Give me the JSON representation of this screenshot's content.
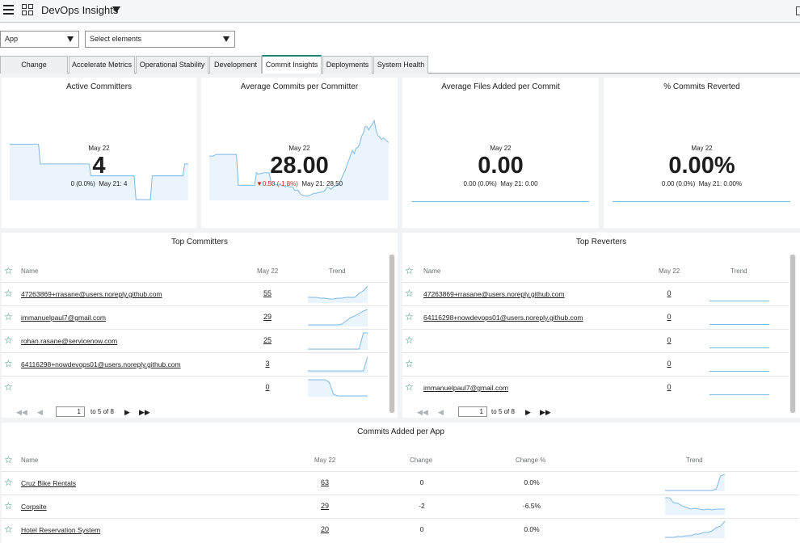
{
  "header": {
    "title": "DevOps Insights"
  },
  "filters": {
    "app_value": "App",
    "elements_placeholder": "Select elements"
  },
  "tabs": [
    "Change Acceleration",
    "Accelerate Metrics",
    "Operational Stability",
    "Development",
    "Commit Insights",
    "Deployments",
    "System Health"
  ],
  "active_tab": "Commit Insights",
  "kpis": [
    {
      "title": "Active Committers",
      "date": "May 22",
      "value": "4",
      "change": "0 (0.0%)",
      "prev": "May 21: 4",
      "negative": false,
      "trend": [
        0.7,
        0.7,
        0.7,
        0.7,
        0.7,
        0.7,
        0.7,
        0.7,
        0.7,
        0.7,
        0.7,
        0.7,
        0.7,
        0.7,
        0.7,
        0.7,
        0.7,
        0.45,
        0.45,
        0.45,
        0.45,
        0.45,
        0.45,
        0.45,
        0.45,
        0.45,
        0.45,
        0.45,
        0.45,
        0.45,
        0.45,
        0.45,
        0.45,
        0.45,
        0.45,
        0.45,
        0.45,
        0.45,
        0.45,
        0.45,
        0.45,
        0.45,
        0.45,
        0.45,
        0.45,
        0.3,
        0.3,
        0.3,
        0.3,
        0.3,
        0.3,
        0.3,
        0.3,
        0.3,
        0.3,
        0.3,
        0.3,
        0.3,
        0.3,
        0.3,
        0.3,
        0.3,
        0.3,
        0.3,
        0.3,
        0.3,
        0.3,
        0.3,
        0.3,
        0.3,
        0.0,
        0.0,
        0.0,
        0.0,
        0.0,
        0.0,
        0.0,
        0.0,
        0.0,
        0.3,
        0.3,
        0.3,
        0.3,
        0.3,
        0.3,
        0.3,
        0.3,
        0.3,
        0.3,
        0.3,
        0.3,
        0.3,
        0.3,
        0.3,
        0.3,
        0.3,
        0.3,
        0.45,
        0.45,
        0.45
      ]
    },
    {
      "title": "Average Commits per Committer",
      "date": "May 22",
      "value": "28.00",
      "change": "▼0.50 (-1.8%)",
      "prev": "May 21: 28.50",
      "negative": true,
      "trend": [
        0.55,
        0.55,
        0.55,
        0.56,
        0.57,
        0.57,
        0.57,
        0.57,
        0.57,
        0.57,
        0.57,
        0.57,
        0.57,
        0.57,
        0.57,
        0.57,
        0.18,
        0.18,
        0.18,
        0.18,
        0.18,
        0.18,
        0.18,
        0.18,
        0.18,
        0.18,
        0.34,
        0.32,
        0.33,
        0.33,
        0.34,
        0.34,
        0.34,
        0.34,
        0.22,
        0.22,
        0.19,
        0.19,
        0.18,
        0.19,
        0.18,
        0.17,
        0.16,
        0.17,
        0.16,
        0.16,
        0.16,
        0.12,
        0.12,
        0.12,
        0.08,
        0.06,
        0.05,
        0.05,
        0.04,
        0.05,
        0.06,
        0.07,
        0.08,
        0.08,
        0.09,
        0.09,
        0.1,
        0.1,
        0.12,
        0.16,
        0.15,
        0.13,
        0.15,
        0.17,
        0.17,
        0.2,
        0.22,
        0.27,
        0.32,
        0.37,
        0.44,
        0.5,
        0.56,
        0.62,
        0.58,
        0.65,
        0.66,
        0.7,
        0.8,
        0.84,
        0.92,
        0.92,
        0.88,
        0.92,
        0.95,
        1.0,
        0.88,
        0.81,
        0.79,
        0.76,
        0.78,
        0.76,
        0.74,
        0.72
      ]
    },
    {
      "title": "Average Files Added per Commit",
      "date": "May 22",
      "value": "0.00",
      "change": "0.00 (0.0%)",
      "prev": "May 21: 0.00",
      "negative": false,
      "trend": []
    },
    {
      "title": "% Commits Reverted",
      "date": "May 22",
      "value": "0.00%",
      "change": "0.00 (0.0%)",
      "prev": "May 21: 0.00%",
      "negative": false,
      "trend": []
    }
  ],
  "top_committers": {
    "title": "Top Committers",
    "columns": {
      "name": "Name",
      "date": "May 22",
      "trend": "Trend"
    },
    "rows": [
      {
        "name": "47263869+rrasane@users.noreply.github.com",
        "value": "55",
        "trend": [
          0.3,
          0.3,
          0.3,
          0.25,
          0.25,
          0.2,
          0.2,
          0.25,
          0.25,
          0.3,
          0.3,
          0.3,
          0.55,
          0.7,
          1.0
        ]
      },
      {
        "name": "immanuelpaul7@gmail.com",
        "value": "29",
        "trend": [
          0.05,
          0.05,
          0.05,
          0.05,
          0.05,
          0.05,
          0.05,
          0.05,
          0.1,
          0.3,
          0.5,
          0.6,
          0.75,
          0.9,
          1.0
        ]
      },
      {
        "name": "rohan.rasane@servicenow.com",
        "value": "25",
        "trend": [
          0.0,
          0.0,
          0.0,
          0.0,
          0.0,
          0.0,
          0.0,
          0.0,
          0.0,
          0.0,
          0.0,
          0.0,
          0.0,
          1.0,
          1.0
        ]
      },
      {
        "name": "64116298+nowdevops01@users.noreply.github.com",
        "value": "3",
        "trend": [
          0.1,
          0.1,
          0.1,
          0.1,
          0.1,
          0.1,
          0.1,
          0.1,
          0.1,
          0.1,
          0.1,
          0.1,
          0.1,
          0.1,
          1.0
        ]
      },
      {
        "name": "",
        "value": "0",
        "trend": [
          1.0,
          1.0,
          1.0,
          1.0,
          1.0,
          0.85,
          0.1,
          0.0,
          0.0,
          0.0,
          0.0,
          0.0,
          0.0,
          0.0,
          0.0
        ]
      }
    ],
    "pager": {
      "page": "1",
      "of": "to 5 of 8"
    }
  },
  "top_reverters": {
    "title": "Top Reverters",
    "columns": {
      "name": "Name",
      "date": "May 22",
      "trend": "Trend"
    },
    "rows": [
      {
        "name": "47263869+rrasane@users.noreply.github.com",
        "value": "0"
      },
      {
        "name": "64116298+nowdevops01@users.noreply.github.com",
        "value": "0"
      },
      {
        "name": "",
        "value": "0"
      },
      {
        "name": "",
        "value": "0"
      },
      {
        "name": "immanuelpaul7@gmail.com",
        "value": "0"
      }
    ],
    "pager": {
      "page": "1",
      "of": "to 5 of 8"
    }
  },
  "commits_per_app": {
    "title": "Commits Added per App",
    "columns": {
      "name": "Name",
      "date": "May 22",
      "change": "Change",
      "change_pct": "Change %",
      "trend": "Trend"
    },
    "rows": [
      {
        "name": "Cruz Bike Rentals",
        "value": "63",
        "change": "0",
        "change_pct": "0.0%",
        "trend": [
          0.0,
          0.0,
          0.0,
          0.0,
          0.0,
          0.0,
          0.0,
          0.0,
          0.0,
          0.0,
          0.0,
          0.0,
          0.1,
          0.9,
          1.0
        ]
      },
      {
        "name": "Corpsite",
        "value": "29",
        "change": "-2",
        "change_pct": "-6.5%",
        "trend": [
          1.0,
          1.0,
          0.7,
          0.65,
          0.5,
          0.4,
          0.3,
          0.35,
          0.3,
          0.25,
          0.3,
          0.25,
          0.3,
          0.3,
          0.3
        ]
      },
      {
        "name": "Hotel Reservation System",
        "value": "20",
        "change": "0",
        "change_pct": "0.0%",
        "trend": [
          0.0,
          0.0,
          0.0,
          0.05,
          0.05,
          0.1,
          0.1,
          0.2,
          0.2,
          0.3,
          0.3,
          0.4,
          0.6,
          0.7,
          1.0
        ]
      }
    ]
  },
  "colors": {
    "accent": "#1f8476",
    "trend_line": "#7fb9e6",
    "trend_fill": "#e9f4fc",
    "negative": "#c62828"
  }
}
